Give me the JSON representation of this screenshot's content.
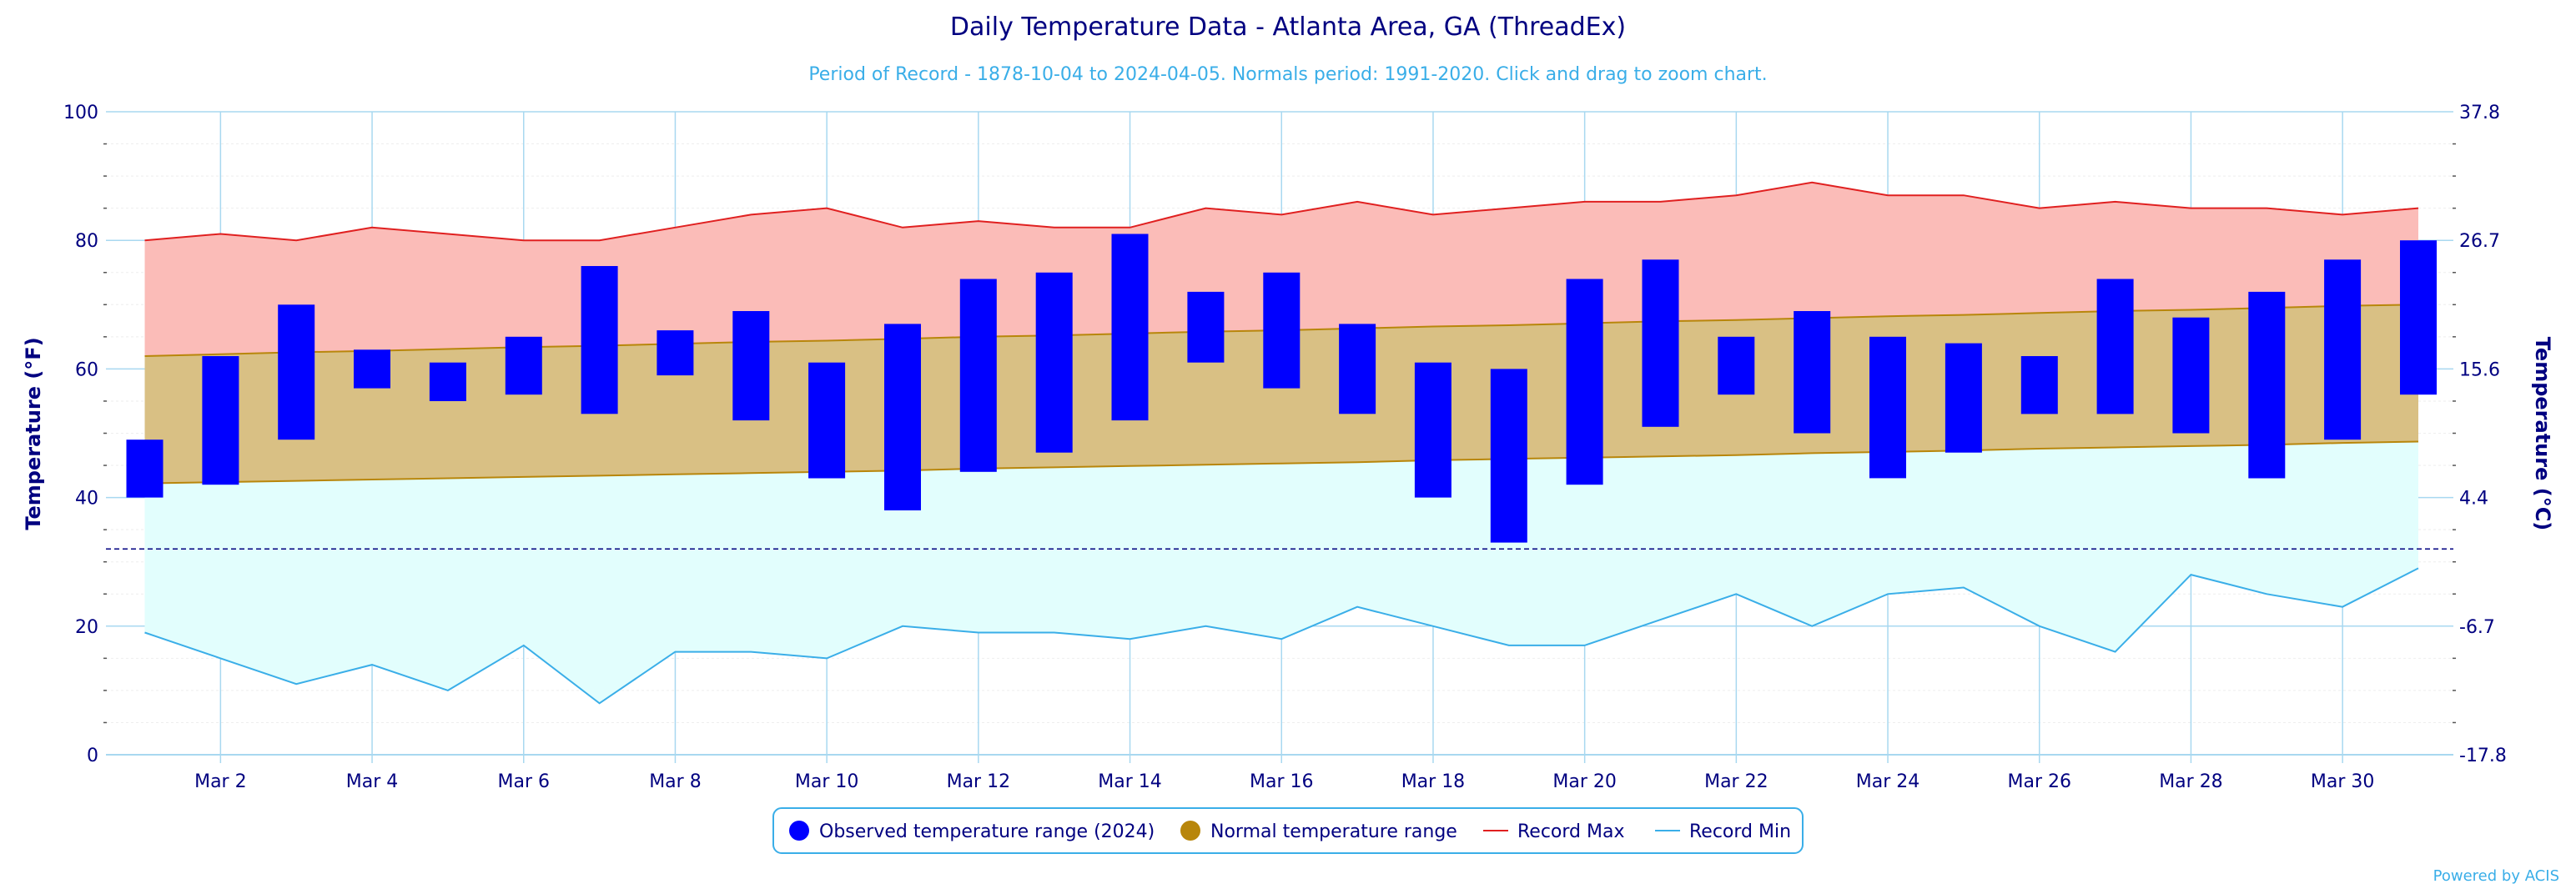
{
  "chart_data": {
    "type": "bar",
    "title": "Daily Temperature Data - Atlanta Area, GA (ThreadEx)",
    "subtitle": "Period of Record - 1878-10-04 to 2024-04-05. Normals period: 1991-2020. Click and drag to zoom chart.",
    "ylabel": "Temperature (°F)",
    "ylabel_right": "Temperature (°C)",
    "ylim": [
      0,
      100
    ],
    "y_ticks": [
      "0",
      "20",
      "40",
      "60",
      "80",
      "100"
    ],
    "y_ticks_right": [
      "-17.8",
      "-6.7",
      "4.4",
      "15.6",
      "26.7",
      "37.8"
    ],
    "x_tick_labels": [
      "Mar 2",
      "Mar 4",
      "Mar 6",
      "Mar 8",
      "Mar 10",
      "Mar 12",
      "Mar 14",
      "Mar 16",
      "Mar 18",
      "Mar 20",
      "Mar 22",
      "Mar 24",
      "Mar 26",
      "Mar 28",
      "Mar 30"
    ],
    "x_tick_days": [
      2,
      4,
      6,
      8,
      10,
      12,
      14,
      16,
      18,
      20,
      22,
      24,
      26,
      28,
      30
    ],
    "days": [
      1,
      2,
      3,
      4,
      5,
      6,
      7,
      8,
      9,
      10,
      11,
      12,
      13,
      14,
      15,
      16,
      17,
      18,
      19,
      20,
      21,
      22,
      23,
      24,
      25,
      26,
      27,
      28,
      29,
      30,
      31
    ],
    "freezing_line": 32,
    "grid": true,
    "legend_position": "bottom-center",
    "series": [
      {
        "name": "Observed temperature range (2024)",
        "color": "#0000ff",
        "low": [
          40,
          42,
          49,
          57,
          55,
          56,
          53,
          59,
          52,
          43,
          38,
          44,
          47,
          52,
          61,
          57,
          53,
          40,
          33,
          42,
          51,
          56,
          50,
          43,
          47,
          53,
          53,
          50,
          43,
          49,
          56
        ],
        "high": [
          49,
          62,
          70,
          63,
          61,
          65,
          76,
          66,
          69,
          61,
          67,
          74,
          75,
          81,
          72,
          75,
          67,
          61,
          60,
          74,
          77,
          65,
          69,
          65,
          64,
          62,
          74,
          68,
          72,
          77,
          80
        ]
      },
      {
        "name": "Normal temperature range",
        "color": "#b8860b",
        "low": [
          42.2,
          42.4,
          42.6,
          42.8,
          43.0,
          43.2,
          43.4,
          43.6,
          43.8,
          44.0,
          44.2,
          44.5,
          44.7,
          44.9,
          45.1,
          45.3,
          45.5,
          45.8,
          46.0,
          46.2,
          46.4,
          46.6,
          46.9,
          47.1,
          47.3,
          47.6,
          47.8,
          48.0,
          48.2,
          48.5,
          48.7
        ],
        "high": [
          62.0,
          62.3,
          62.6,
          62.8,
          63.1,
          63.4,
          63.6,
          63.9,
          64.2,
          64.4,
          64.7,
          65.0,
          65.2,
          65.5,
          65.8,
          66.0,
          66.3,
          66.6,
          66.8,
          67.1,
          67.4,
          67.6,
          67.9,
          68.2,
          68.4,
          68.7,
          69.0,
          69.2,
          69.5,
          69.8,
          70.0
        ]
      },
      {
        "name": "Record Max",
        "color": "#e02020",
        "values": [
          80,
          81,
          80,
          82,
          81,
          80,
          80,
          82,
          84,
          85,
          82,
          83,
          82,
          82,
          85,
          84,
          86,
          84,
          85,
          86,
          86,
          87,
          89,
          87,
          87,
          85,
          86,
          85,
          85,
          84,
          85
        ]
      },
      {
        "name": "Record Min",
        "color": "#3aaee8",
        "values": [
          19,
          15,
          11,
          14,
          10,
          17,
          8,
          16,
          16,
          15,
          20,
          19,
          19,
          18,
          20,
          18,
          23,
          20,
          17,
          17,
          21,
          25,
          20,
          25,
          26,
          20,
          16,
          28,
          25,
          23,
          29
        ]
      }
    ]
  },
  "footer": {
    "credit": "Powered by ACIS"
  }
}
